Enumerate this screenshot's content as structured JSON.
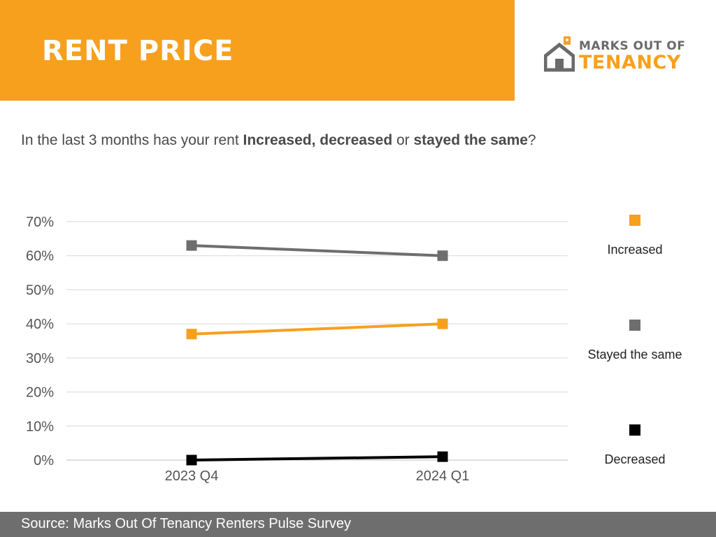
{
  "header": {
    "title": "RENT PRICE",
    "band_color": "#F7A01E"
  },
  "logo": {
    "line1": "MARKS OUT OF",
    "line2": "TENANCY",
    "icon": "house-icon"
  },
  "question": {
    "part1": "In the last 3 months has your rent ",
    "bold1": "Increased, decreased",
    "part2": " or ",
    "bold2": "stayed the same",
    "part3": "?"
  },
  "chart_data": {
    "type": "line",
    "categories": [
      "2023 Q4",
      "2024 Q1"
    ],
    "series": [
      {
        "name": "Increased",
        "values": [
          37,
          40
        ],
        "color": "#F7A01E"
      },
      {
        "name": "Stayed the same",
        "values": [
          63,
          60
        ],
        "color": "#6E6E6E"
      },
      {
        "name": "Decreased",
        "values": [
          0,
          1
        ],
        "color": "#000000"
      }
    ],
    "yticks": [
      "0%",
      "10%",
      "20%",
      "30%",
      "40%",
      "50%",
      "60%",
      "70%"
    ],
    "ylim": [
      0,
      70
    ],
    "grid": true,
    "legend_position": "right",
    "marker": "square"
  },
  "footer": {
    "source": "Source: Marks Out Of Tenancy Renters Pulse Survey"
  }
}
